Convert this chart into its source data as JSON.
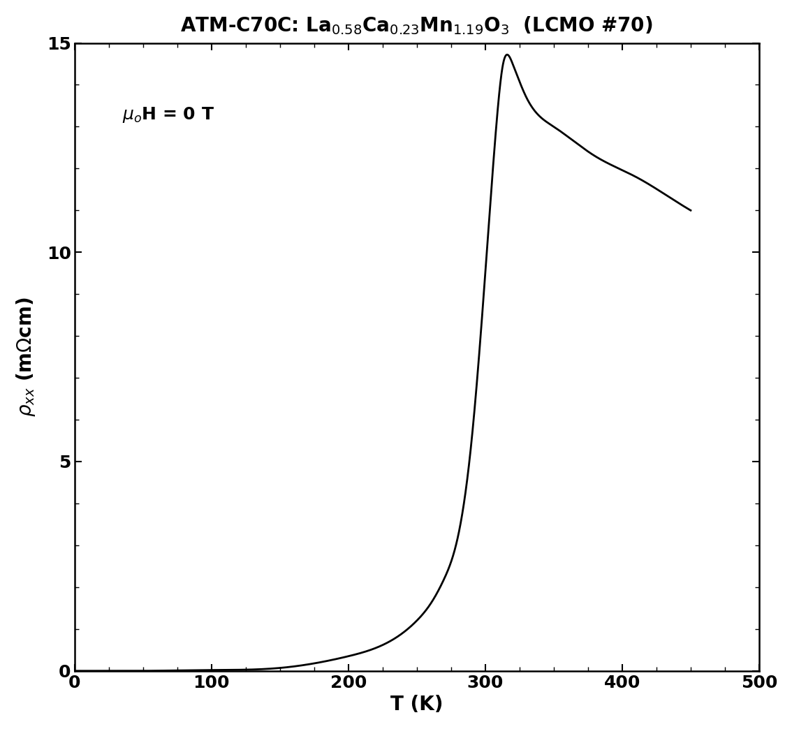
{
  "title_formula": "ATM-C70C: La$_{0.58}$Ca$_{0.23}$Mn$_{1.19}$O$_3$  (LCMO #70)",
  "xlabel": "T (K)",
  "ylabel": "$\\rho_{xx}$ (m$\\Omega$cm)",
  "annotation": "$\\mu_o$H = 0 T",
  "xlim": [
    0,
    500
  ],
  "ylim": [
    0,
    15
  ],
  "xticks": [
    0,
    100,
    200,
    300,
    400,
    500
  ],
  "yticks": [
    0,
    5,
    10,
    15
  ],
  "line_color": "#000000",
  "background_color": "#ffffff",
  "title_fontsize": 20,
  "label_fontsize": 20,
  "tick_fontsize": 18,
  "annotation_fontsize": 18
}
